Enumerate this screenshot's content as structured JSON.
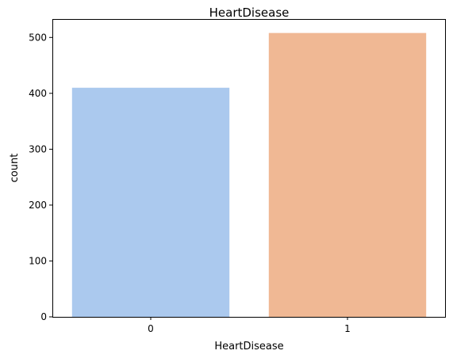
{
  "chart_data": {
    "type": "bar",
    "title": "HeartDisease",
    "xlabel": "HeartDisease",
    "ylabel": "count",
    "categories": [
      "0",
      "1"
    ],
    "values": [
      410,
      508
    ],
    "ylim": [
      0,
      533
    ],
    "yticks": [
      0,
      100,
      200,
      300,
      400,
      500
    ],
    "colors": [
      "#abc9ee",
      "#f0b894"
    ],
    "grid": false,
    "legend": "none"
  }
}
